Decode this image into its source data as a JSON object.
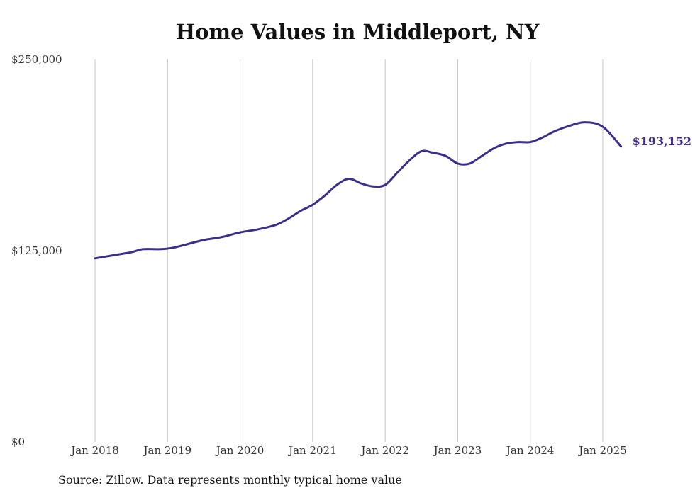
{
  "chart_data": {
    "type": "line",
    "title": "Home Values in Middleport, NY",
    "xlabel": "",
    "ylabel": "",
    "ylim": [
      0,
      250000
    ],
    "y_ticks": [
      {
        "value": 0,
        "label": "$0"
      },
      {
        "value": 125000,
        "label": "$125,000"
      },
      {
        "value": 250000,
        "label": "$250,000"
      }
    ],
    "x_ticks": [
      {
        "value": 2018.0,
        "label": "Jan 2018"
      },
      {
        "value": 2019.0,
        "label": "Jan 2019"
      },
      {
        "value": 2020.0,
        "label": "Jan 2020"
      },
      {
        "value": 2021.0,
        "label": "Jan 2021"
      },
      {
        "value": 2022.0,
        "label": "Jan 2022"
      },
      {
        "value": 2023.0,
        "label": "Jan 2023"
      },
      {
        "value": 2024.0,
        "label": "Jan 2024"
      },
      {
        "value": 2025.0,
        "label": "Jan 2025"
      }
    ],
    "grid": "vertical",
    "series": [
      {
        "name": "",
        "color": "#3b2f8a",
        "x": [
          2018.0,
          2018.25,
          2018.5,
          2018.6667,
          2018.9167,
          2019.0833,
          2019.25,
          2019.5,
          2019.75,
          2020.0,
          2020.25,
          2020.5,
          2020.6667,
          2020.8333,
          2021.0,
          2021.1667,
          2021.3333,
          2021.5,
          2021.6667,
          2021.8333,
          2022.0,
          2022.1667,
          2022.3333,
          2022.5,
          2022.6667,
          2022.8333,
          2023.0,
          2023.1667,
          2023.3333,
          2023.5,
          2023.6667,
          2023.8333,
          2024.0,
          2024.1667,
          2024.3333,
          2024.5,
          2024.75,
          2025.0,
          2025.25
        ],
        "y": [
          120000,
          122000,
          124000,
          126000,
          126000,
          127000,
          129000,
          132000,
          134000,
          137000,
          139000,
          142000,
          146000,
          151000,
          155000,
          161000,
          168000,
          172000,
          169000,
          167000,
          168000,
          176000,
          184000,
          190000,
          189000,
          187000,
          182000,
          182000,
          187000,
          192000,
          195000,
          196000,
          196000,
          199000,
          203000,
          206000,
          209000,
          206000,
          193152
        ]
      }
    ],
    "end_label": "$193,152",
    "source": "Source: Zillow. Data represents monthly typical home value"
  }
}
